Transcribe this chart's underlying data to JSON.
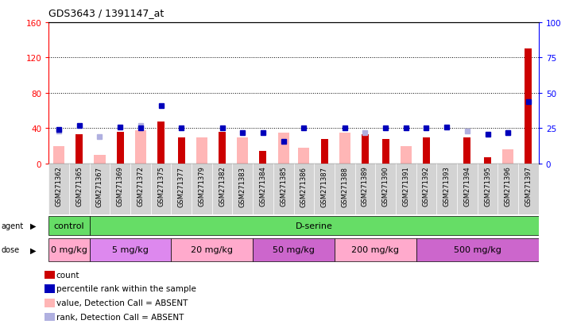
{
  "title": "GDS3643 / 1391147_at",
  "samples": [
    "GSM271362",
    "GSM271365",
    "GSM271367",
    "GSM271369",
    "GSM271372",
    "GSM271375",
    "GSM271377",
    "GSM271379",
    "GSM271382",
    "GSM271383",
    "GSM271384",
    "GSM271385",
    "GSM271386",
    "GSM271387",
    "GSM271388",
    "GSM271389",
    "GSM271390",
    "GSM271391",
    "GSM271392",
    "GSM271393",
    "GSM271394",
    "GSM271395",
    "GSM271396",
    "GSM271397"
  ],
  "count": [
    0,
    33,
    0,
    36,
    0,
    48,
    30,
    0,
    36,
    0,
    14,
    0,
    0,
    28,
    0,
    33,
    28,
    0,
    30,
    0,
    30,
    7,
    0,
    130
  ],
  "percentile_rank": [
    24,
    27,
    0,
    26,
    25,
    41,
    25,
    0,
    25,
    22,
    22,
    16,
    25,
    0,
    25,
    0,
    25,
    25,
    25,
    26,
    0,
    21,
    22,
    44
  ],
  "value_absent": [
    20,
    0,
    10,
    0,
    38,
    0,
    0,
    30,
    0,
    30,
    0,
    35,
    18,
    0,
    35,
    0,
    0,
    20,
    0,
    0,
    0,
    0,
    16,
    0
  ],
  "rank_absent": [
    23,
    0,
    19,
    0,
    27,
    0,
    0,
    0,
    0,
    0,
    0,
    0,
    0,
    0,
    0,
    22,
    0,
    0,
    0,
    0,
    23,
    0,
    22,
    0
  ],
  "count_color": "#cc0000",
  "percentile_color": "#0000bb",
  "value_absent_color": "#ffb6b6",
  "rank_absent_color": "#b0b0e0",
  "dose_groups": [
    {
      "label": "0 mg/kg",
      "start": 0,
      "end": 2,
      "color": "#ffaacc"
    },
    {
      "label": "5 mg/kg",
      "start": 2,
      "end": 6,
      "color": "#dd88ee"
    },
    {
      "label": "20 mg/kg",
      "start": 6,
      "end": 10,
      "color": "#ffaacc"
    },
    {
      "label": "50 mg/kg",
      "start": 10,
      "end": 14,
      "color": "#cc66cc"
    },
    {
      "label": "200 mg/kg",
      "start": 14,
      "end": 18,
      "color": "#ffaacc"
    },
    {
      "label": "500 mg/kg",
      "start": 18,
      "end": 24,
      "color": "#cc66cc"
    }
  ],
  "ylim_left": [
    0,
    160
  ],
  "ylim_right": [
    0,
    100
  ],
  "yticks_left": [
    0,
    40,
    80,
    120,
    160
  ],
  "yticks_right": [
    0,
    25,
    50,
    75,
    100
  ],
  "grid_lines": [
    40,
    80,
    120
  ]
}
